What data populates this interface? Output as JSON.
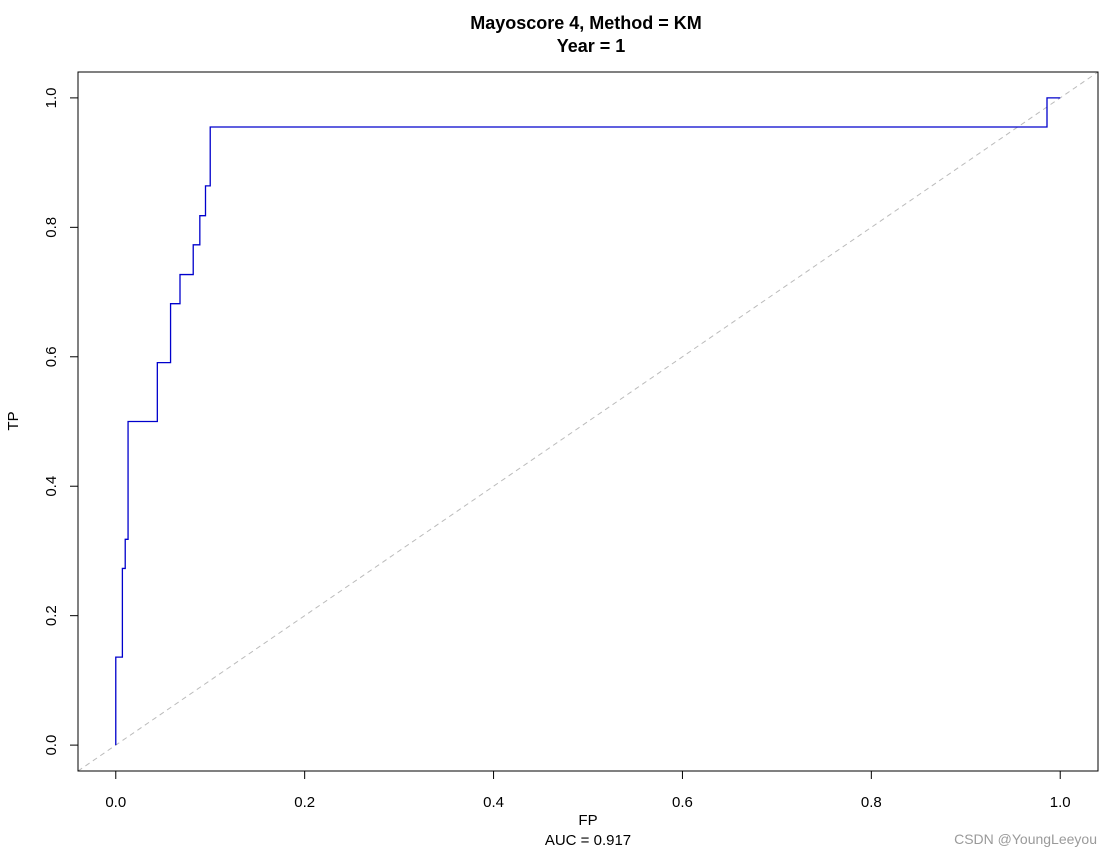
{
  "chart_data": {
    "type": "line",
    "title": "Mayoscore 4, Method = KM",
    "subtitle": "Year = 1",
    "xlabel": "FP",
    "ylabel": "TP",
    "sub_label": "AUC =  0.917",
    "xlim": [
      -0.04,
      1.04
    ],
    "ylim": [
      -0.04,
      1.04
    ],
    "x_ticks": [
      0.0,
      0.2,
      0.4,
      0.6,
      0.8,
      1.0
    ],
    "x_tick_labels": [
      "0.0",
      "0.2",
      "0.4",
      "0.6",
      "0.8",
      "1.0"
    ],
    "y_ticks": [
      0.0,
      0.2,
      0.4,
      0.6,
      0.8,
      1.0
    ],
    "y_tick_labels": [
      "0.0",
      "0.2",
      "0.4",
      "0.6",
      "0.8",
      "1.0"
    ],
    "grid": false,
    "series": [
      {
        "color": "#0000cc",
        "style": "step",
        "points": [
          [
            0.0,
            0.0
          ],
          [
            0.0,
            0.136
          ],
          [
            0.007,
            0.136
          ],
          [
            0.007,
            0.273
          ],
          [
            0.01,
            0.273
          ],
          [
            0.01,
            0.318
          ],
          [
            0.013,
            0.318
          ],
          [
            0.013,
            0.5
          ],
          [
            0.044,
            0.5
          ],
          [
            0.044,
            0.591
          ],
          [
            0.058,
            0.591
          ],
          [
            0.058,
            0.682
          ],
          [
            0.068,
            0.682
          ],
          [
            0.068,
            0.727
          ],
          [
            0.082,
            0.727
          ],
          [
            0.082,
            0.773
          ],
          [
            0.089,
            0.773
          ],
          [
            0.089,
            0.818
          ],
          [
            0.095,
            0.818
          ],
          [
            0.095,
            0.864
          ],
          [
            0.1,
            0.864
          ],
          [
            0.1,
            0.955
          ],
          [
            0.986,
            0.955
          ],
          [
            0.986,
            1.0
          ],
          [
            1.0,
            1.0
          ]
        ]
      }
    ],
    "reference_line": {
      "color": "#bbbbbb",
      "style": "dashed",
      "from": [
        -0.04,
        -0.04
      ],
      "to": [
        1.04,
        1.04
      ]
    }
  },
  "watermark": "CSDN @YoungLeeyou"
}
